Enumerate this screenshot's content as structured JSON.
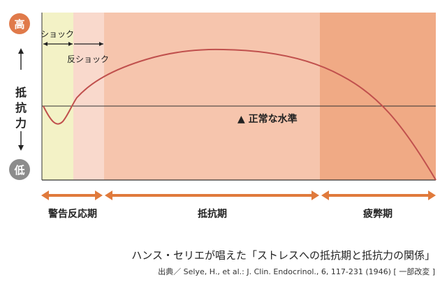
{
  "axis": {
    "high_label": "高",
    "low_label": "低",
    "y_label": "抵抗力",
    "up_arrow": "↑",
    "down_arrow": "↓"
  },
  "phases": {
    "shock": "ショック",
    "antishock": "反ショック",
    "alarm": "警告反応期",
    "resistance": "抵抗期",
    "exhaustion": "疲弊期"
  },
  "normal_level_label": "▲ 正常な水準",
  "caption": {
    "title": "ハンス・セリエが唱えた「ストレスへの抵抗期と抵抗力の関係」",
    "source": "出典／ Selye, H., et al.: J. Clin. Endocrinol., 6, 117-231 (1946) [ 一部改変 ]"
  },
  "colors": {
    "alarm_shock_zone": "#f3f2c6",
    "antishock_zone": "#f9d9cc",
    "resistance_zone": "#f6c5ad",
    "exhaustion_zone": "#f0aa85",
    "curve": "#c0504d",
    "arrow": "#e07a3c",
    "badge_high": "#e07a4a",
    "badge_low": "#8c8c8c"
  }
}
